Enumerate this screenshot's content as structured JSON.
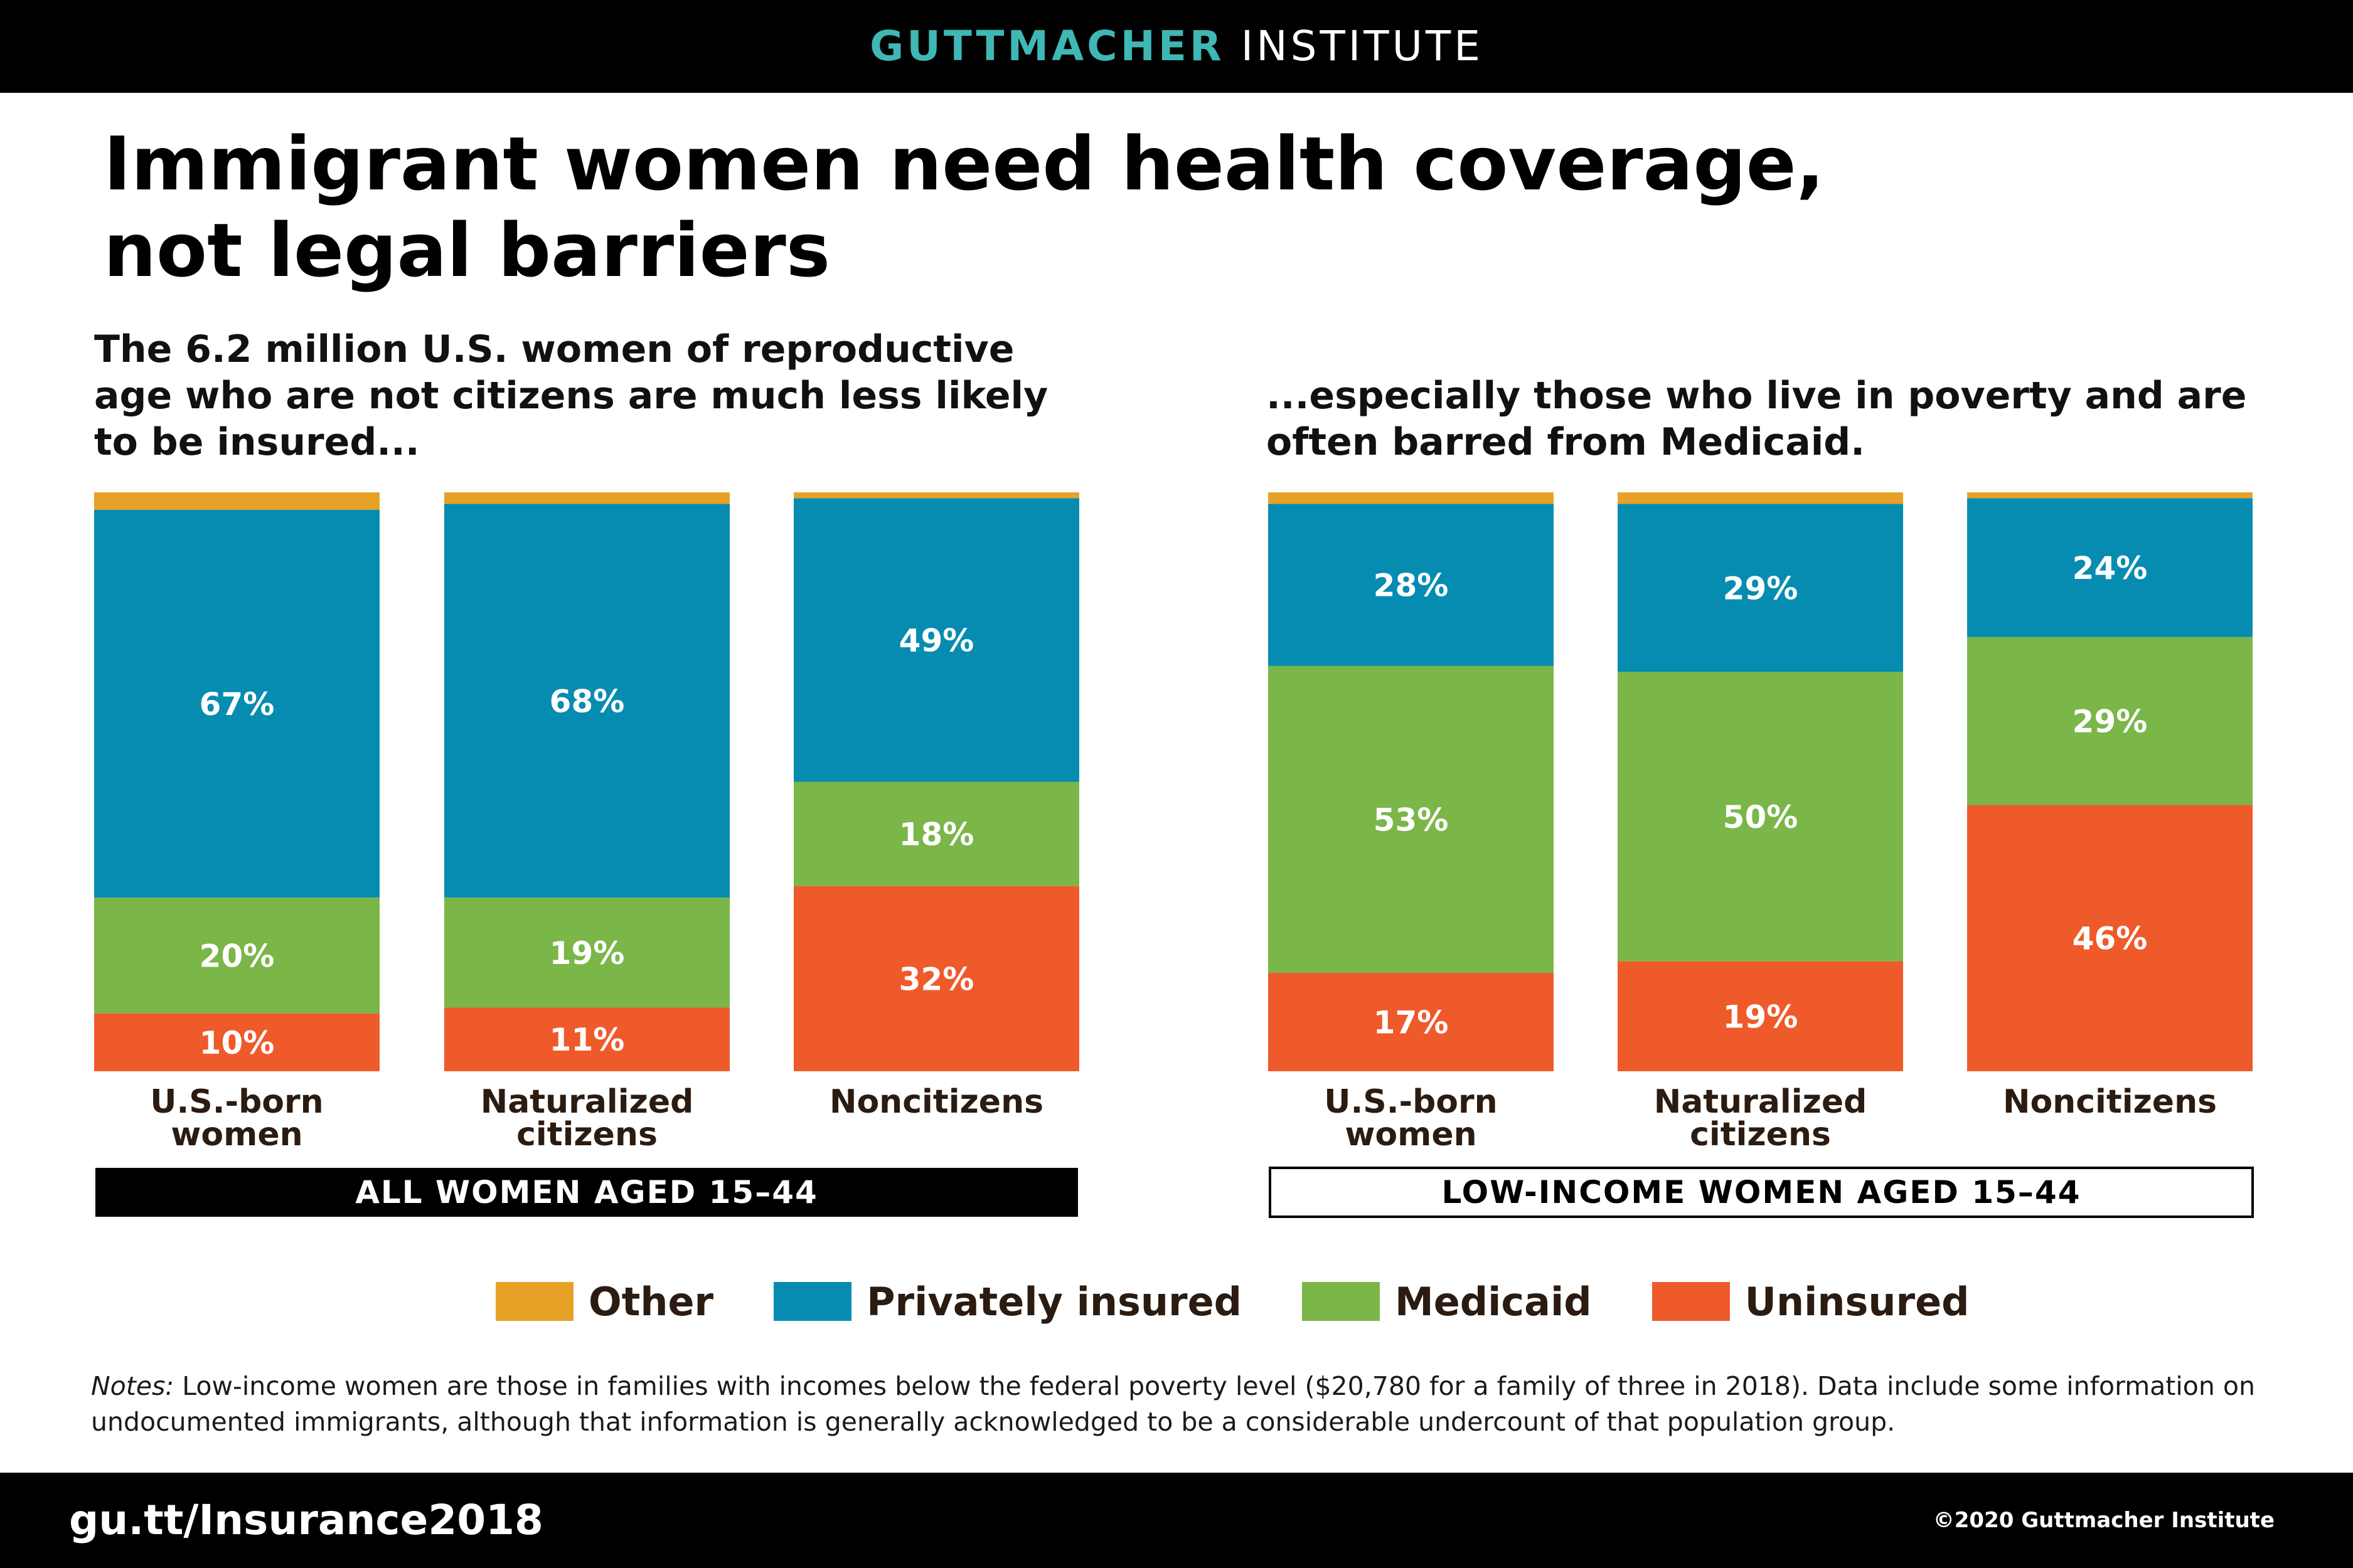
{
  "header": {
    "brand_primary": "GUTTMACHER",
    "brand_secondary": "INSTITUTE"
  },
  "title_line1": "Immigrant women need health coverage,",
  "title_line2": "not legal barriers",
  "subtitle_left": "The 6.2 million U.S. women of reproductive age who are not citizens are much less likely to be insured...",
  "subtitle_right": "...especially those who live in poverty and are often barred from Medicaid.",
  "colors": {
    "Other": "#e8a127",
    "Privately insured": "#078cb1",
    "Medicaid": "#7ab648",
    "Uninsured": "#ef5a2a"
  },
  "chart_data": [
    {
      "type": "bar",
      "stacked": true,
      "group_label": "ALL WOMEN AGED 15–44",
      "categories": [
        [
          "U.S.-born",
          "women"
        ],
        [
          "Naturalized",
          "citizens"
        ],
        [
          "Noncitizens"
        ]
      ],
      "ylim": [
        0,
        100
      ],
      "series": [
        {
          "name": "Uninsured",
          "values": [
            10,
            11,
            32
          ],
          "labels": [
            "10%",
            "11%",
            "32%"
          ]
        },
        {
          "name": "Medicaid",
          "values": [
            20,
            19,
            18
          ],
          "labels": [
            "20%",
            "19%",
            "18%"
          ]
        },
        {
          "name": "Privately insured",
          "values": [
            67,
            68,
            49
          ],
          "labels": [
            "67%",
            "68%",
            "49%"
          ]
        },
        {
          "name": "Other",
          "values": [
            3,
            2,
            1
          ],
          "labels": [
            "",
            "",
            ""
          ]
        }
      ]
    },
    {
      "type": "bar",
      "stacked": true,
      "group_label": "LOW-INCOME WOMEN AGED 15–44",
      "categories": [
        [
          "U.S.-born",
          "women"
        ],
        [
          "Naturalized",
          "citizens"
        ],
        [
          "Noncitizens"
        ]
      ],
      "ylim": [
        0,
        100
      ],
      "series": [
        {
          "name": "Uninsured",
          "values": [
            17,
            19,
            46
          ],
          "labels": [
            "17%",
            "19%",
            "46%"
          ]
        },
        {
          "name": "Medicaid",
          "values": [
            53,
            50,
            29
          ],
          "labels": [
            "53%",
            "50%",
            "29%"
          ]
        },
        {
          "name": "Privately insured",
          "values": [
            28,
            29,
            24
          ],
          "labels": [
            "28%",
            "29%",
            "24%"
          ]
        },
        {
          "name": "Other",
          "values": [
            2,
            2,
            1
          ],
          "labels": [
            "",
            "",
            ""
          ]
        }
      ]
    }
  ],
  "legend": [
    {
      "label": "Other",
      "color": "#e8a127"
    },
    {
      "label": "Privately insured",
      "color": "#078cb1"
    },
    {
      "label": "Medicaid",
      "color": "#7ab648"
    },
    {
      "label": "Uninsured",
      "color": "#ef5a2a"
    }
  ],
  "notes": {
    "label": "Notes:",
    "text": "Low-income women are those in families with incomes below the federal poverty level ($20,780 for a family of three in 2018). Data include some information on undocumented immigrants, although that information is generally acknowledged to be a considerable undercount of that population group."
  },
  "footer": {
    "url": "gu.tt/Insurance2018",
    "copyright": "©2020 Guttmacher Institute"
  }
}
